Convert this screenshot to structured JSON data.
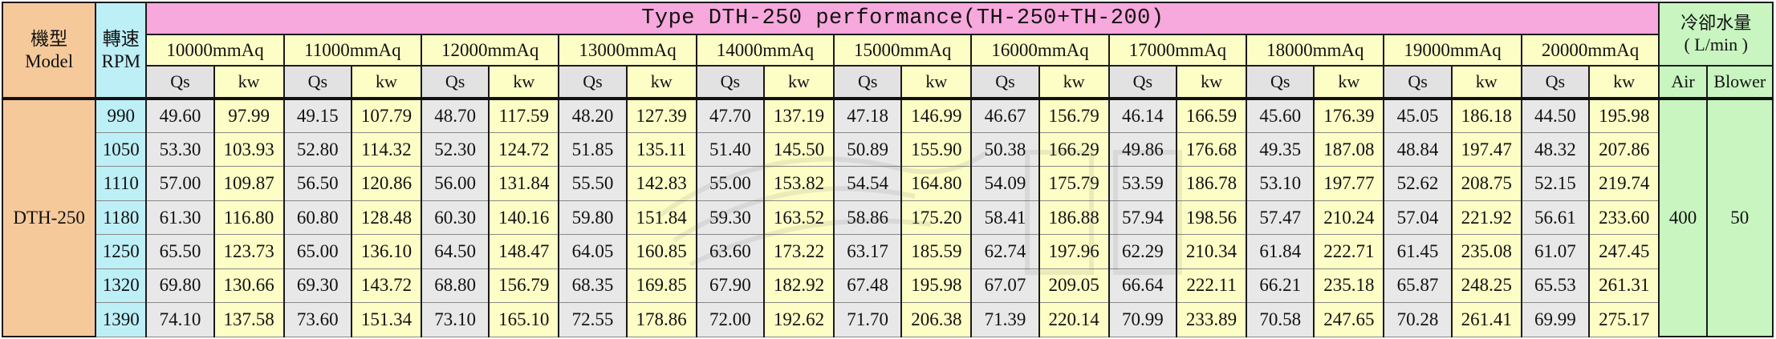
{
  "header": {
    "model_label_zh": "機型",
    "model_label_en": "Model",
    "rpm_label_zh": "轉速",
    "rpm_label_en": "RPM",
    "title": "Type DTH-250 performance(TH-250+TH-200)",
    "water_label_zh": "冷卻水量",
    "water_label_unit": "( L/min )",
    "pressures": [
      "10000mmAq",
      "11000mmAq",
      "12000mmAq",
      "13000mmAq",
      "14000mmAq",
      "15000mmAq",
      "16000mmAq",
      "17000mmAq",
      "18000mmAq",
      "19000mmAq",
      "20000mmAq"
    ],
    "qs_label": "Qs",
    "kw_label": "kw",
    "air_label": "Air",
    "blower_label": "Blower"
  },
  "model": "DTH-250",
  "water": {
    "air": "400",
    "blower": "50"
  },
  "rows": [
    {
      "rpm": "990",
      "values": [
        "49.60",
        "97.99",
        "49.15",
        "107.79",
        "48.70",
        "117.59",
        "48.20",
        "127.39",
        "47.70",
        "137.19",
        "47.18",
        "146.99",
        "46.67",
        "156.79",
        "46.14",
        "166.59",
        "45.60",
        "176.39",
        "45.05",
        "186.18",
        "44.50",
        "195.98"
      ]
    },
    {
      "rpm": "1050",
      "values": [
        "53.30",
        "103.93",
        "52.80",
        "114.32",
        "52.30",
        "124.72",
        "51.85",
        "135.11",
        "51.40",
        "145.50",
        "50.89",
        "155.90",
        "50.38",
        "166.29",
        "49.86",
        "176.68",
        "49.35",
        "187.08",
        "48.84",
        "197.47",
        "48.32",
        "207.86"
      ]
    },
    {
      "rpm": "1110",
      "values": [
        "57.00",
        "109.87",
        "56.50",
        "120.86",
        "56.00",
        "131.84",
        "55.50",
        "142.83",
        "55.00",
        "153.82",
        "54.54",
        "164.80",
        "54.09",
        "175.79",
        "53.59",
        "186.78",
        "53.10",
        "197.77",
        "52.62",
        "208.75",
        "52.15",
        "219.74"
      ]
    },
    {
      "rpm": "1180",
      "values": [
        "61.30",
        "116.80",
        "60.80",
        "128.48",
        "60.30",
        "140.16",
        "59.80",
        "151.84",
        "59.30",
        "163.52",
        "58.86",
        "175.20",
        "58.41",
        "186.88",
        "57.94",
        "198.56",
        "57.47",
        "210.24",
        "57.04",
        "221.92",
        "56.61",
        "233.60"
      ]
    },
    {
      "rpm": "1250",
      "values": [
        "65.50",
        "123.73",
        "65.00",
        "136.10",
        "64.50",
        "148.47",
        "64.05",
        "160.85",
        "63.60",
        "173.22",
        "63.17",
        "185.59",
        "62.74",
        "197.96",
        "62.29",
        "210.34",
        "61.84",
        "222.71",
        "61.45",
        "235.08",
        "61.07",
        "247.45"
      ]
    },
    {
      "rpm": "1320",
      "values": [
        "69.80",
        "130.66",
        "69.30",
        "143.72",
        "68.80",
        "156.79",
        "68.35",
        "169.85",
        "67.90",
        "182.92",
        "67.48",
        "195.98",
        "67.07",
        "209.05",
        "66.64",
        "222.11",
        "66.21",
        "235.18",
        "65.87",
        "248.25",
        "65.53",
        "261.31"
      ]
    },
    {
      "rpm": "1390",
      "values": [
        "74.10",
        "137.58",
        "73.60",
        "151.34",
        "73.10",
        "165.10",
        "72.55",
        "178.86",
        "72.00",
        "192.62",
        "71.70",
        "206.38",
        "71.39",
        "220.14",
        "70.99",
        "233.89",
        "70.58",
        "247.65",
        "70.28",
        "261.41",
        "69.99",
        "275.17"
      ]
    }
  ]
}
